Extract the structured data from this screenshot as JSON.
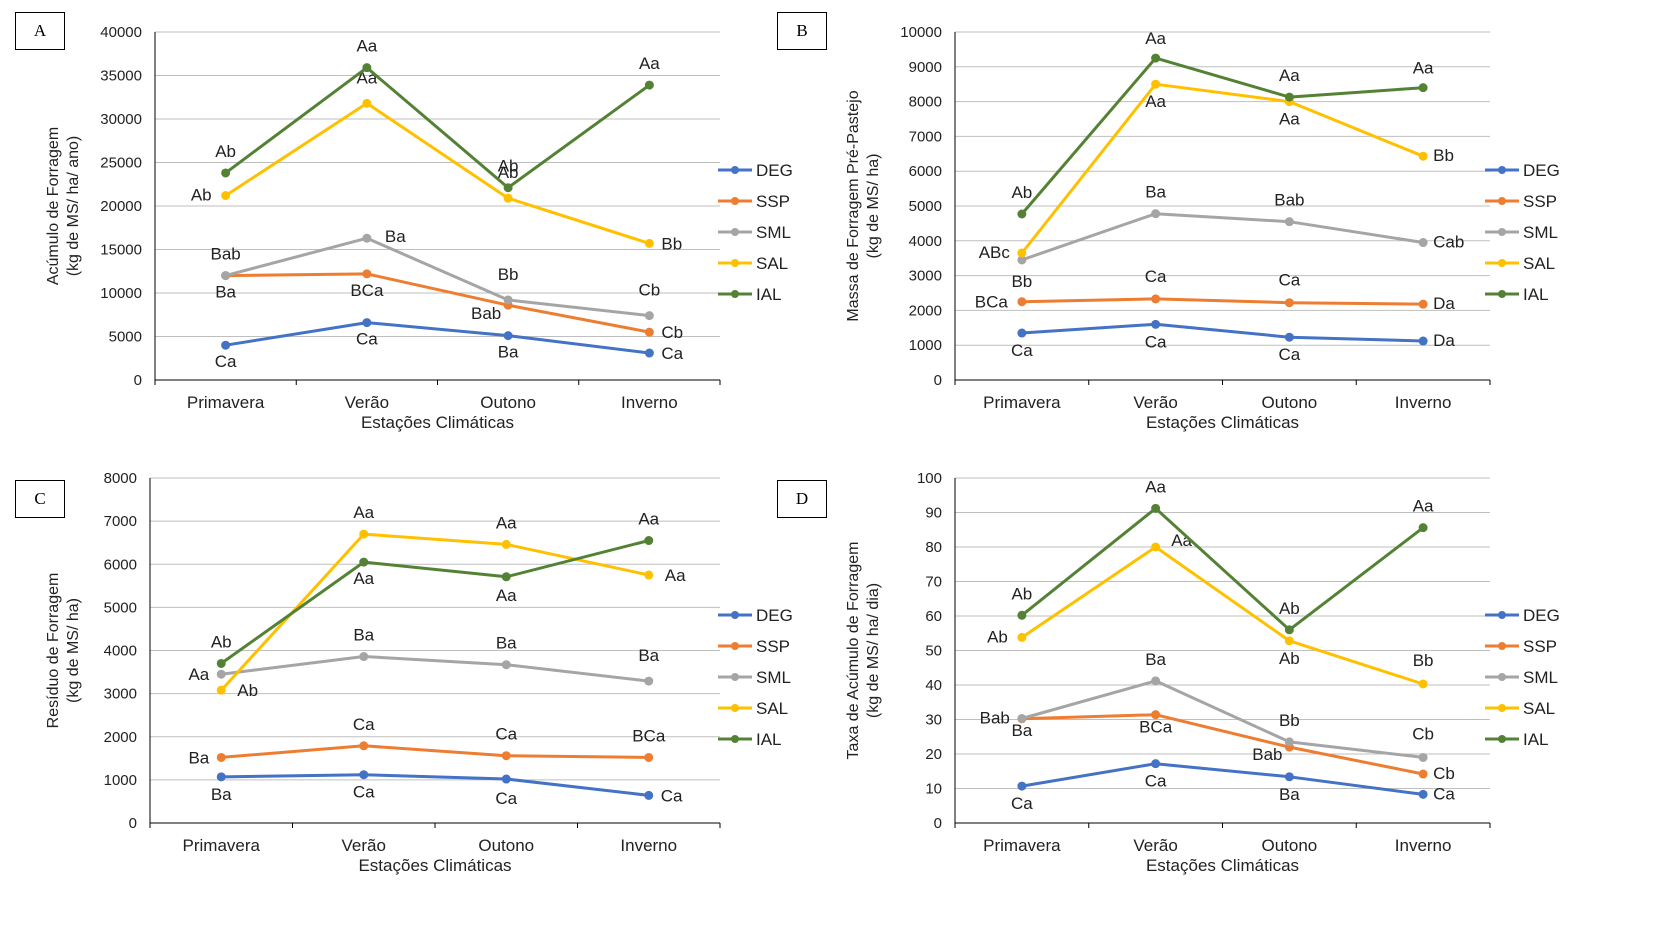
{
  "figure": {
    "x_categories": [
      "Primavera",
      "Verão",
      "Outono",
      "Inverno"
    ],
    "series_styles": [
      {
        "name": "DEG",
        "color": "#4472c4"
      },
      {
        "name": "SSP",
        "color": "#ed7d31"
      },
      {
        "name": "SML",
        "color": "#a5a5a5"
      },
      {
        "name": "SAL",
        "color": "#ffc000"
      },
      {
        "name": "IAL",
        "color": "#548235"
      }
    ]
  },
  "chart_data": [
    {
      "panel": "A",
      "type": "line",
      "xlabel": "Estações Climáticas",
      "ylabel": [
        "Acúmulo de Forragem",
        "(kg de MS/ ha/ ano)"
      ],
      "ylim": [
        0,
        40000
      ],
      "yticks": [
        0,
        5000,
        10000,
        15000,
        20000,
        25000,
        30000,
        35000,
        40000
      ],
      "categories": [
        "Primavera",
        "Verão",
        "Outono",
        "Inverno"
      ],
      "legend_position": "right",
      "grid": true,
      "series": [
        {
          "name": "DEG",
          "color": "#4472c4",
          "values": [
            4000,
            6600,
            5100,
            3100
          ],
          "labels": [
            "Ca",
            "Ca",
            "Ba",
            "Ca"
          ]
        },
        {
          "name": "SSP",
          "color": "#ed7d31",
          "values": [
            12000,
            12200,
            8600,
            5500
          ],
          "labels": [
            "Ba",
            "BCa",
            "Bab",
            "Cb"
          ]
        },
        {
          "name": "SML",
          "color": "#a5a5a5",
          "values": [
            12000,
            16300,
            9200,
            7400
          ],
          "labels": [
            "Bab",
            "Ba",
            "Bb",
            "Cb"
          ]
        },
        {
          "name": "SAL",
          "color": "#ffc000",
          "values": [
            21200,
            31800,
            20900,
            15700
          ],
          "labels": [
            "Ab",
            "Aa",
            "Ab",
            "Bb"
          ]
        },
        {
          "name": "IAL",
          "color": "#548235",
          "values": [
            23800,
            35900,
            22100,
            33900
          ],
          "labels": [
            "Ab",
            "Aa",
            "Ab",
            "Aa"
          ]
        }
      ]
    },
    {
      "panel": "B",
      "type": "line",
      "xlabel": "Estações Climáticas",
      "ylabel": [
        "Massa de Forragem Pré-Pastejo",
        "(kg de MS/ ha)"
      ],
      "ylim": [
        0,
        10000
      ],
      "yticks": [
        0,
        1000,
        2000,
        3000,
        4000,
        5000,
        6000,
        7000,
        8000,
        9000,
        10000
      ],
      "categories": [
        "Primavera",
        "Verão",
        "Outono",
        "Inverno"
      ],
      "legend_position": "right",
      "grid": true,
      "series": [
        {
          "name": "DEG",
          "color": "#4472c4",
          "values": [
            1350,
            1600,
            1230,
            1120
          ],
          "labels": [
            "Ca",
            "Ca",
            "Ca",
            "Da"
          ]
        },
        {
          "name": "SSP",
          "color": "#ed7d31",
          "values": [
            2250,
            2330,
            2220,
            2180
          ],
          "labels": [
            "BCa",
            "Ca",
            "Ca",
            "Da"
          ]
        },
        {
          "name": "SML",
          "color": "#a5a5a5",
          "values": [
            3450,
            4780,
            4550,
            3950
          ],
          "labels": [
            "Bb",
            "Ba",
            "Bab",
            "Cab"
          ]
        },
        {
          "name": "SAL",
          "color": "#ffc000",
          "values": [
            3650,
            8500,
            8000,
            6430
          ],
          "labels": [
            "ABc",
            "Aa",
            "Aa",
            "Bb"
          ]
        },
        {
          "name": "IAL",
          "color": "#548235",
          "values": [
            4770,
            9250,
            8130,
            8400
          ],
          "labels": [
            "Ab",
            "Aa",
            "Aa",
            "Aa"
          ]
        }
      ]
    },
    {
      "panel": "C",
      "type": "line",
      "xlabel": "Estações Climáticas",
      "ylabel": [
        "Resíduo de Forragem",
        "(kg de MS/ ha)"
      ],
      "ylim": [
        0,
        8000
      ],
      "yticks": [
        0,
        1000,
        2000,
        3000,
        4000,
        5000,
        6000,
        7000,
        8000
      ],
      "categories": [
        "Primavera",
        "Verão",
        "Outono",
        "Inverno"
      ],
      "legend_position": "right",
      "grid": true,
      "series": [
        {
          "name": "DEG",
          "color": "#4472c4",
          "values": [
            1070,
            1120,
            1020,
            640
          ],
          "labels": [
            "Ba",
            "Ca",
            "Ca",
            "Ca"
          ]
        },
        {
          "name": "SSP",
          "color": "#ed7d31",
          "values": [
            1520,
            1790,
            1560,
            1520
          ],
          "labels": [
            "Ba",
            "Ca",
            "Ca",
            "BCa"
          ]
        },
        {
          "name": "SML",
          "color": "#a5a5a5",
          "values": [
            3450,
            3860,
            3670,
            3290
          ],
          "labels": [
            "Aa",
            "Ba",
            "Ba",
            "Ba"
          ]
        },
        {
          "name": "SAL",
          "color": "#ffc000",
          "values": [
            3080,
            6700,
            6460,
            5750
          ],
          "labels": [
            "Ab",
            "Aa",
            "Aa",
            "Aa"
          ]
        },
        {
          "name": "IAL",
          "color": "#548235",
          "values": [
            3700,
            6050,
            5710,
            6550
          ],
          "labels": [
            "Ab",
            "Aa",
            "Aa",
            "Aa"
          ]
        }
      ]
    },
    {
      "panel": "D",
      "type": "line",
      "xlabel": "Estações Climáticas",
      "ylabel": [
        "Taxa de Acúmulo de Forragem",
        "(kg de MS/ ha/ dia)"
      ],
      "ylim": [
        0,
        100
      ],
      "yticks": [
        0,
        10,
        20,
        30,
        40,
        50,
        60,
        70,
        80,
        90,
        100
      ],
      "categories": [
        "Primavera",
        "Verão",
        "Outono",
        "Inverno"
      ],
      "legend_position": "right",
      "grid": true,
      "series": [
        {
          "name": "DEG",
          "color": "#4472c4",
          "values": [
            10.7,
            17.2,
            13.4,
            8.3
          ],
          "labels": [
            "Ca",
            "Ca",
            "Ba",
            "Ca"
          ]
        },
        {
          "name": "SSP",
          "color": "#ed7d31",
          "values": [
            30.2,
            31.4,
            22.0,
            14.2
          ],
          "labels": [
            "Ba",
            "BCa",
            "Bab",
            "Cb"
          ]
        },
        {
          "name": "SML",
          "color": "#a5a5a5",
          "values": [
            30.3,
            41.2,
            23.5,
            19.0
          ],
          "labels": [
            "Bab",
            "Ba",
            "Bb",
            "Cb"
          ]
        },
        {
          "name": "SAL",
          "color": "#ffc000",
          "values": [
            53.8,
            80.0,
            52.8,
            40.3
          ],
          "labels": [
            "Ab",
            "Aa",
            "Ab",
            "Bb"
          ]
        },
        {
          "name": "IAL",
          "color": "#548235",
          "values": [
            60.2,
            91.2,
            56.0,
            85.6
          ],
          "labels": [
            "Ab",
            "Aa",
            "Ab",
            "Aa"
          ]
        }
      ]
    }
  ]
}
